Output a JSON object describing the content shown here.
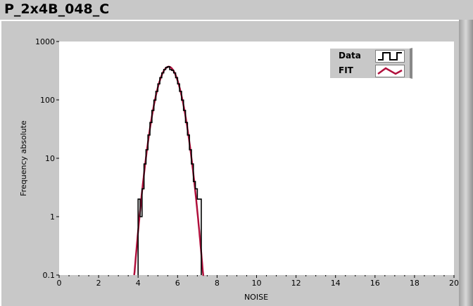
{
  "window": {
    "title": "P_2x4B_048_C"
  },
  "chart_data": {
    "type": "line",
    "xlabel": "NOISE",
    "ylabel": "Frequency absolute",
    "xlim": [
      0,
      20
    ],
    "ylim": [
      0.1,
      1000
    ],
    "yscale": "log",
    "grid": false,
    "legend_placement": "top-right",
    "x_ticks": [
      "0",
      "2",
      "4",
      "6",
      "8",
      "10",
      "12",
      "14",
      "16",
      "18",
      "20"
    ],
    "y_ticks": [
      "0.1",
      "1",
      "10",
      "100",
      "1000"
    ],
    "series": [
      {
        "name": "Data",
        "style": "step",
        "color": "#000000",
        "bin_edges": [
          4.0,
          4.1,
          4.2,
          4.3,
          4.4,
          4.5,
          4.6,
          4.7,
          4.8,
          4.9,
          5.0,
          5.1,
          5.2,
          5.3,
          5.4,
          5.5,
          5.6,
          5.7,
          5.8,
          5.9,
          6.0,
          6.1,
          6.2,
          6.3,
          6.4,
          6.5,
          6.6,
          6.7,
          6.8,
          6.9,
          7.0,
          7.1,
          7.2
        ],
        "values": [
          2,
          1,
          3,
          8,
          14,
          25,
          41,
          66,
          99,
          140,
          188,
          240,
          290,
          332,
          360,
          370,
          330,
          320,
          290,
          240,
          188,
          140,
          99,
          66,
          41,
          25,
          14,
          8,
          4,
          3,
          2,
          2
        ]
      },
      {
        "name": "FIT",
        "style": "line",
        "color": "#b0103c",
        "model": "gaussian",
        "amplitude": 370,
        "mean": 5.55,
        "sigma": 0.43,
        "x_range": [
          3.8,
          7.35
        ]
      }
    ]
  },
  "legend": {
    "items": [
      {
        "label": "Data",
        "color": "#000000"
      },
      {
        "label": "FIT",
        "color": "#b0103c"
      }
    ]
  }
}
